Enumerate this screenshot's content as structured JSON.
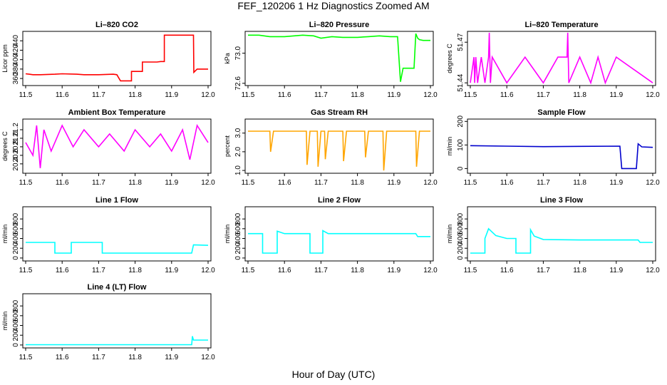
{
  "figure": {
    "title": "FEF_120206  1 Hz Diagnostics Zoomed AM",
    "xlabel": "Hour of Day (UTC)"
  },
  "chart_data": [
    {
      "type": "line",
      "title": "Li–820 CO2",
      "ylabel": "Licor ppm",
      "color": "#ff0000",
      "xlim": [
        11.5,
        12.0
      ],
      "ylim": [
        345,
        460
      ],
      "xticks": [
        "11.5",
        "11.6",
        "11.7",
        "11.8",
        "11.9",
        "12.0"
      ],
      "yticks": [
        "360",
        "380",
        "400",
        "420",
        "440"
      ],
      "x": [
        11.5,
        11.51,
        11.52,
        11.54,
        11.58,
        11.6,
        11.64,
        11.66,
        11.7,
        11.74,
        11.75,
        11.76,
        11.79,
        11.79,
        11.82,
        11.82,
        11.86,
        11.87,
        11.88,
        11.88,
        11.95,
        11.96,
        11.961,
        11.97,
        12.0
      ],
      "y": [
        370,
        369,
        368,
        368,
        369,
        370,
        369,
        368,
        368,
        369,
        368,
        355,
        355,
        375,
        375,
        395,
        395,
        396,
        396,
        452,
        452,
        452,
        373,
        380,
        380
      ]
    },
    {
      "type": "line",
      "title": "Li–820 Pressure",
      "ylabel": "kPa",
      "color": "#00ff00",
      "xlim": [
        11.5,
        12.0
      ],
      "ylim": [
        72.57,
        73.29
      ],
      "xticks": [
        "11.5",
        "11.6",
        "11.7",
        "11.8",
        "11.9",
        "12.0"
      ],
      "yticks": [
        "72.6",
        "73.0"
      ],
      "x": [
        11.5,
        11.53,
        11.56,
        11.6,
        11.65,
        11.68,
        11.7,
        11.73,
        11.76,
        11.8,
        11.83,
        11.86,
        11.89,
        11.91,
        11.918,
        11.925,
        11.93,
        11.95,
        11.955,
        11.96,
        11.965,
        11.97,
        11.98,
        12.0
      ],
      "y": [
        73.24,
        73.24,
        73.22,
        73.22,
        73.24,
        73.23,
        73.2,
        73.22,
        73.21,
        73.21,
        73.22,
        73.23,
        73.22,
        73.22,
        72.62,
        72.8,
        72.8,
        72.8,
        72.8,
        73.26,
        73.2,
        73.18,
        73.17,
        73.17
      ]
    },
    {
      "type": "line",
      "title": "Li–820 Temperature",
      "ylabel": "degrees C",
      "color": "#ff00ff",
      "xlim": [
        11.5,
        12.0
      ],
      "ylim": [
        51.438,
        51.478
      ],
      "xticks": [
        "11.5",
        "11.6",
        "11.7",
        "11.8",
        "11.9",
        "12.0"
      ],
      "yticks": [
        "51.44",
        "51.47"
      ],
      "x": [
        11.5,
        11.51,
        11.512,
        11.515,
        11.52,
        11.53,
        11.54,
        11.55,
        11.552,
        11.555,
        11.56,
        11.6,
        11.65,
        11.7,
        11.74,
        11.765,
        11.767,
        11.77,
        11.8,
        11.83,
        11.85,
        11.87,
        11.9,
        12.0
      ],
      "y": [
        51.44,
        51.459,
        51.44,
        51.459,
        51.44,
        51.459,
        51.44,
        51.459,
        51.477,
        51.44,
        51.459,
        51.44,
        51.459,
        51.44,
        51.459,
        51.459,
        51.477,
        51.44,
        51.459,
        51.44,
        51.459,
        51.44,
        51.459,
        51.44
      ]
    },
    {
      "type": "line",
      "title": "Ambient Box Temperature",
      "ylabel": "degrees C",
      "color": "#ff00ff",
      "xlim": [
        11.5,
        12.0
      ],
      "ylim": [
        20.18,
        21.45
      ],
      "xticks": [
        "11.5",
        "11.6",
        "11.7",
        "11.8",
        "11.9",
        "12.0"
      ],
      "yticks": [
        "20.4",
        "20.6",
        "20.8",
        "21.0",
        "21.2"
      ],
      "x": [
        11.5,
        11.52,
        11.53,
        11.54,
        11.55,
        11.57,
        11.6,
        11.63,
        11.66,
        11.7,
        11.73,
        11.77,
        11.8,
        11.84,
        11.87,
        11.9,
        11.93,
        11.95,
        11.97,
        12.0
      ],
      "y": [
        20.9,
        20.6,
        21.3,
        20.3,
        21.2,
        20.7,
        21.3,
        20.8,
        21.2,
        20.8,
        21.1,
        20.7,
        21.2,
        20.8,
        21.1,
        20.7,
        21.2,
        20.5,
        21.3,
        20.9
      ]
    },
    {
      "type": "line",
      "title": "Gas Stream RH",
      "ylabel": "percent",
      "color": "#ffa500",
      "xlim": [
        11.5,
        12.0
      ],
      "ylim": [
        0.85,
        3.75
      ],
      "xticks": [
        "11.5",
        "11.6",
        "11.7",
        "11.8",
        "11.9",
        "12.0"
      ],
      "yticks": [
        "1.0",
        "2.0",
        "3.0"
      ],
      "x": [
        11.5,
        11.56,
        11.562,
        11.57,
        11.66,
        11.662,
        11.67,
        11.69,
        11.692,
        11.7,
        11.71,
        11.712,
        11.72,
        11.76,
        11.762,
        11.77,
        11.82,
        11.822,
        11.83,
        11.87,
        11.872,
        11.88,
        11.96,
        11.962,
        11.97,
        12.0
      ],
      "y": [
        3.1,
        3.1,
        2.0,
        3.1,
        3.1,
        1.3,
        3.1,
        3.1,
        1.2,
        3.1,
        3.1,
        1.6,
        3.1,
        3.1,
        1.5,
        3.1,
        3.1,
        1.7,
        3.1,
        3.1,
        1.0,
        3.1,
        3.1,
        1.2,
        3.1,
        3.1
      ]
    },
    {
      "type": "line",
      "title": "Sample Flow",
      "ylabel": "ml/min",
      "color": "#0000cd",
      "xlim": [
        11.5,
        12.0
      ],
      "ylim": [
        -20,
        210
      ],
      "xticks": [
        "11.5",
        "11.6",
        "11.7",
        "11.8",
        "11.9",
        "12.0"
      ],
      "yticks": [
        "0",
        "100",
        "200"
      ],
      "x": [
        11.5,
        11.6,
        11.7,
        11.8,
        11.91,
        11.915,
        11.92,
        11.955,
        11.96,
        11.97,
        12.0
      ],
      "y": [
        97,
        95,
        93,
        94,
        95,
        0,
        0,
        0,
        105,
        92,
        90
      ]
    },
    {
      "type": "line",
      "title": "Line 1 Flow",
      "ylabel": "ml/min",
      "color": "#00ffff",
      "xlim": [
        11.5,
        12.0
      ],
      "ylim": [
        -60,
        1050
      ],
      "xticks": [
        "11.5",
        "11.6",
        "11.7",
        "11.8",
        "11.9",
        "12.0"
      ],
      "yticks": [
        "0",
        "200",
        "400",
        "600",
        "800"
      ],
      "x": [
        11.5,
        11.58,
        11.58,
        11.625,
        11.625,
        11.71,
        11.71,
        11.955,
        11.96,
        12.0
      ],
      "y": [
        320,
        320,
        100,
        100,
        320,
        320,
        100,
        100,
        270,
        260
      ]
    },
    {
      "type": "line",
      "title": "Line 2 Flow",
      "ylabel": "ml/min",
      "color": "#00ffff",
      "xlim": [
        11.5,
        12.0
      ],
      "ylim": [
        -60,
        1050
      ],
      "xticks": [
        "11.5",
        "11.6",
        "11.7",
        "11.8",
        "11.9",
        "12.0"
      ],
      "yticks": [
        "0",
        "200",
        "400",
        "600",
        "800"
      ],
      "x": [
        11.5,
        11.54,
        11.54,
        11.58,
        11.58,
        11.6,
        11.67,
        11.67,
        11.705,
        11.705,
        11.72,
        11.96,
        11.965,
        12.0
      ],
      "y": [
        500,
        500,
        100,
        100,
        550,
        500,
        500,
        100,
        100,
        560,
        500,
        500,
        440,
        440
      ]
    },
    {
      "type": "line",
      "title": "Line 3 Flow",
      "ylabel": "ml/min",
      "color": "#00ffff",
      "xlim": [
        11.5,
        12.0
      ],
      "ylim": [
        -60,
        1050
      ],
      "xticks": [
        "11.5",
        "11.6",
        "11.7",
        "11.8",
        "11.9",
        "12.0"
      ],
      "yticks": [
        "0",
        "200",
        "400",
        "600",
        "800"
      ],
      "x": [
        11.5,
        11.54,
        11.54,
        11.55,
        11.57,
        11.6,
        11.625,
        11.625,
        11.665,
        11.665,
        11.675,
        11.7,
        11.8,
        11.96,
        11.965,
        12.0
      ],
      "y": [
        100,
        100,
        400,
        600,
        460,
        400,
        400,
        100,
        100,
        580,
        450,
        380,
        370,
        370,
        320,
        320
      ]
    },
    {
      "type": "line",
      "title": "Line 4 (LT) Flow",
      "ylabel": "ml/min",
      "color": "#00ffff",
      "xlim": [
        11.5,
        12.0
      ],
      "ylim": [
        -60,
        1050
      ],
      "xticks": [
        "11.5",
        "11.6",
        "11.7",
        "11.8",
        "11.9",
        "12.0"
      ],
      "yticks": [
        "0",
        "200",
        "400",
        "600",
        "800"
      ],
      "x": [
        11.5,
        11.6,
        11.7,
        11.8,
        11.9,
        11.955,
        11.957,
        11.96,
        12.0
      ],
      "y": [
        5,
        5,
        5,
        5,
        5,
        5,
        180,
        100,
        100
      ]
    }
  ]
}
